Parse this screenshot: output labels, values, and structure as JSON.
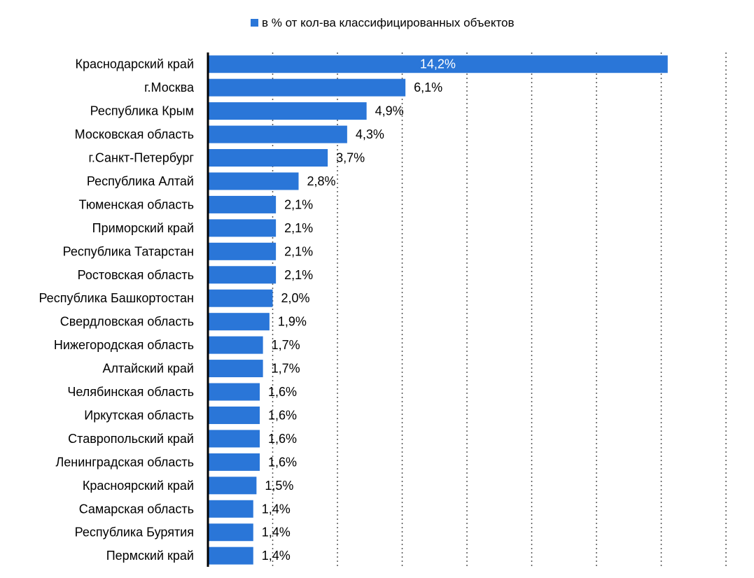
{
  "chart_data": {
    "type": "bar",
    "orientation": "horizontal",
    "legend": {
      "label": "в % от кол-ва классифицированных объектов",
      "position": "top-center"
    },
    "series": [
      {
        "name": "в % от кол-ва классифицированных объектов",
        "color": "#2a76d8"
      }
    ],
    "categories": [
      "Краснодарский край",
      "г.Москва",
      "Республика Крым",
      "Московская область",
      "г.Санкт-Петербург",
      "Республика Алтай",
      "Тюменская область",
      "Приморский край",
      "Республика Татарстан",
      "Ростовская область",
      "Республика Башкортостан",
      "Свердловская область",
      "Нижегородская область",
      "Алтайский край",
      "Челябинская область",
      "Иркутская область",
      "Ставропольский край",
      "Ленинградская область",
      "Красноярский край",
      "Самарская область",
      "Республика Бурятия",
      "Пермский край"
    ],
    "values": [
      14.2,
      6.1,
      4.9,
      4.3,
      3.7,
      2.8,
      2.1,
      2.1,
      2.1,
      2.1,
      2.0,
      1.9,
      1.7,
      1.7,
      1.6,
      1.6,
      1.6,
      1.6,
      1.5,
      1.4,
      1.4,
      1.4
    ],
    "value_labels": [
      "14,2%",
      "6,1%",
      "4,9%",
      "4,3%",
      "3,7%",
      "2,8%",
      "2,1%",
      "2,1%",
      "2,1%",
      "2,1%",
      "2,0%",
      "1,9%",
      "1,7%",
      "1,7%",
      "1,6%",
      "1,6%",
      "1,6%",
      "1,6%",
      "1,5%",
      "1,4%",
      "1,4%",
      "1,4%"
    ],
    "xlim": [
      0,
      16
    ],
    "x_grid_step": 2,
    "grid": "vertical-dotted",
    "axis_labels_visible": false,
    "colors": {
      "bar": "#2a76d8",
      "axis": "#000000",
      "grid": "#555555"
    }
  }
}
